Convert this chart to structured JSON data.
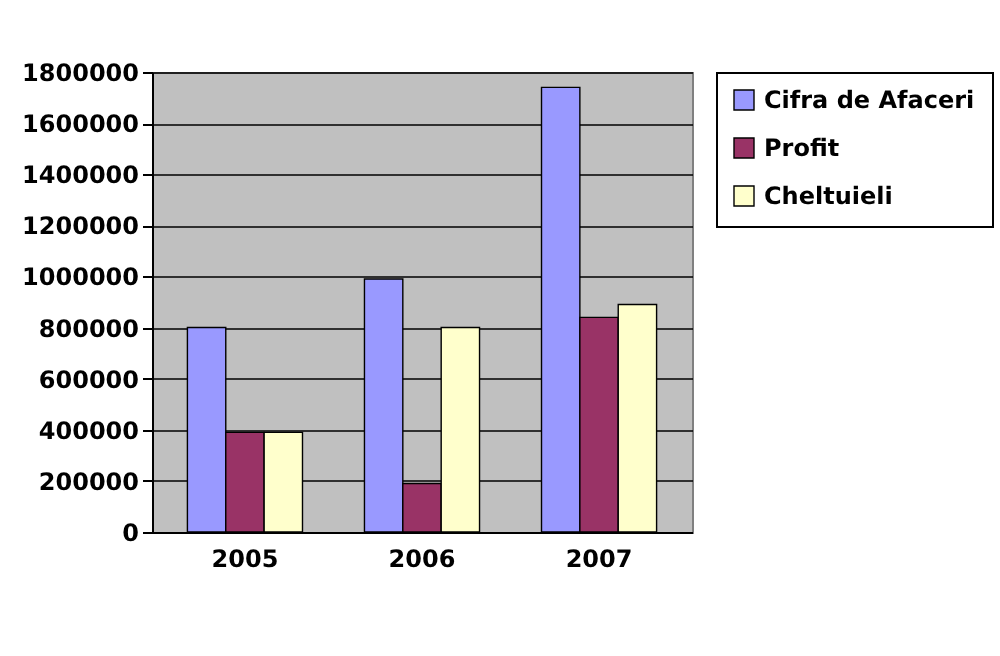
{
  "chart_data": {
    "type": "bar",
    "categories": [
      "2005",
      "2006",
      "2007"
    ],
    "series": [
      {
        "name": "Cifra de Afaceri",
        "color": "#9999ff",
        "values": [
          800000,
          990000,
          1740000
        ]
      },
      {
        "name": "Profit",
        "color": "#993366",
        "values": [
          390000,
          190000,
          840000
        ]
      },
      {
        "name": "Cheltuieli",
        "color": "#ffffcc",
        "values": [
          390000,
          800000,
          890000
        ]
      }
    ],
    "ylim": [
      0,
      1800000
    ],
    "yticks": [
      0,
      200000,
      400000,
      600000,
      800000,
      1000000,
      1200000,
      1400000,
      1600000,
      1800000
    ],
    "grid": "y",
    "legend": "right"
  }
}
